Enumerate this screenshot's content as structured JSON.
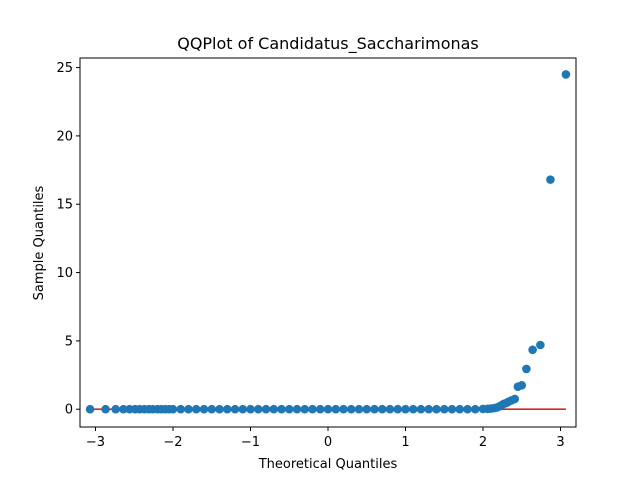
{
  "chart_data": {
    "type": "scatter",
    "title": "QQPlot of Candidatus_Saccharimonas",
    "xlabel": "Theoretical Quantiles",
    "ylabel": "Sample Quantiles",
    "xlim": [
      -3.2,
      3.2
    ],
    "ylim": [
      -1.3,
      25.7
    ],
    "xticks": [
      -3,
      -2,
      -1,
      0,
      1,
      2,
      3
    ],
    "xtick_labels": [
      "−3",
      "−2",
      "−1",
      "0",
      "1",
      "2",
      "3"
    ],
    "yticks": [
      0,
      5,
      10,
      15,
      20,
      25
    ],
    "ytick_labels": [
      "0",
      "5",
      "10",
      "15",
      "20",
      "25"
    ],
    "grid": false,
    "colors": {
      "points": "#1f77b4",
      "reference_line": "#d62728"
    },
    "reference_line": {
      "x": [
        -3.07,
        3.07
      ],
      "y": [
        0,
        0
      ]
    },
    "points": [
      [
        -3.07,
        0.0
      ],
      [
        -2.87,
        0.0
      ],
      [
        -2.74,
        0.0
      ],
      [
        -2.64,
        0.0
      ],
      [
        -2.56,
        0.0
      ],
      [
        -2.49,
        0.0
      ],
      [
        -2.43,
        0.0
      ],
      [
        -2.37,
        0.0
      ],
      [
        -2.31,
        0.0
      ],
      [
        -2.26,
        0.0
      ],
      [
        -2.2,
        0.0
      ],
      [
        -2.15,
        0.0
      ],
      [
        -2.1,
        0.0
      ],
      [
        -2.05,
        0.0
      ],
      [
        -2.0,
        0.0
      ],
      [
        -1.9,
        0.0
      ],
      [
        -1.8,
        0.0
      ],
      [
        -1.7,
        0.0
      ],
      [
        -1.6,
        0.0
      ],
      [
        -1.5,
        0.0
      ],
      [
        -1.4,
        0.0
      ],
      [
        -1.3,
        0.0
      ],
      [
        -1.2,
        0.0
      ],
      [
        -1.1,
        0.0
      ],
      [
        -1.0,
        0.0
      ],
      [
        -0.9,
        0.0
      ],
      [
        -0.8,
        0.0
      ],
      [
        -0.7,
        0.0
      ],
      [
        -0.6,
        0.0
      ],
      [
        -0.5,
        0.0
      ],
      [
        -0.4,
        0.0
      ],
      [
        -0.3,
        0.0
      ],
      [
        -0.2,
        0.0
      ],
      [
        -0.1,
        0.0
      ],
      [
        0.0,
        0.0
      ],
      [
        0.1,
        0.0
      ],
      [
        0.2,
        0.0
      ],
      [
        0.3,
        0.0
      ],
      [
        0.4,
        0.0
      ],
      [
        0.5,
        0.0
      ],
      [
        0.6,
        0.0
      ],
      [
        0.7,
        0.0
      ],
      [
        0.8,
        0.0
      ],
      [
        0.9,
        0.0
      ],
      [
        1.0,
        0.0
      ],
      [
        1.1,
        0.0
      ],
      [
        1.2,
        0.0
      ],
      [
        1.3,
        0.0
      ],
      [
        1.4,
        0.0
      ],
      [
        1.5,
        0.0
      ],
      [
        1.6,
        0.0
      ],
      [
        1.7,
        0.0
      ],
      [
        1.8,
        0.0
      ],
      [
        1.9,
        0.0
      ],
      [
        2.0,
        0.02
      ],
      [
        2.06,
        0.03
      ],
      [
        2.1,
        0.05
      ],
      [
        2.14,
        0.08
      ],
      [
        2.18,
        0.13
      ],
      [
        2.21,
        0.2
      ],
      [
        2.24,
        0.3
      ],
      [
        2.27,
        0.4
      ],
      [
        2.3,
        0.45
      ],
      [
        2.33,
        0.55
      ],
      [
        2.37,
        0.65
      ],
      [
        2.41,
        0.75
      ],
      [
        2.45,
        1.65
      ],
      [
        2.5,
        1.75
      ],
      [
        2.56,
        2.95
      ],
      [
        2.64,
        4.35
      ],
      [
        2.74,
        4.7
      ],
      [
        2.87,
        16.8
      ],
      [
        3.07,
        24.5
      ]
    ]
  }
}
